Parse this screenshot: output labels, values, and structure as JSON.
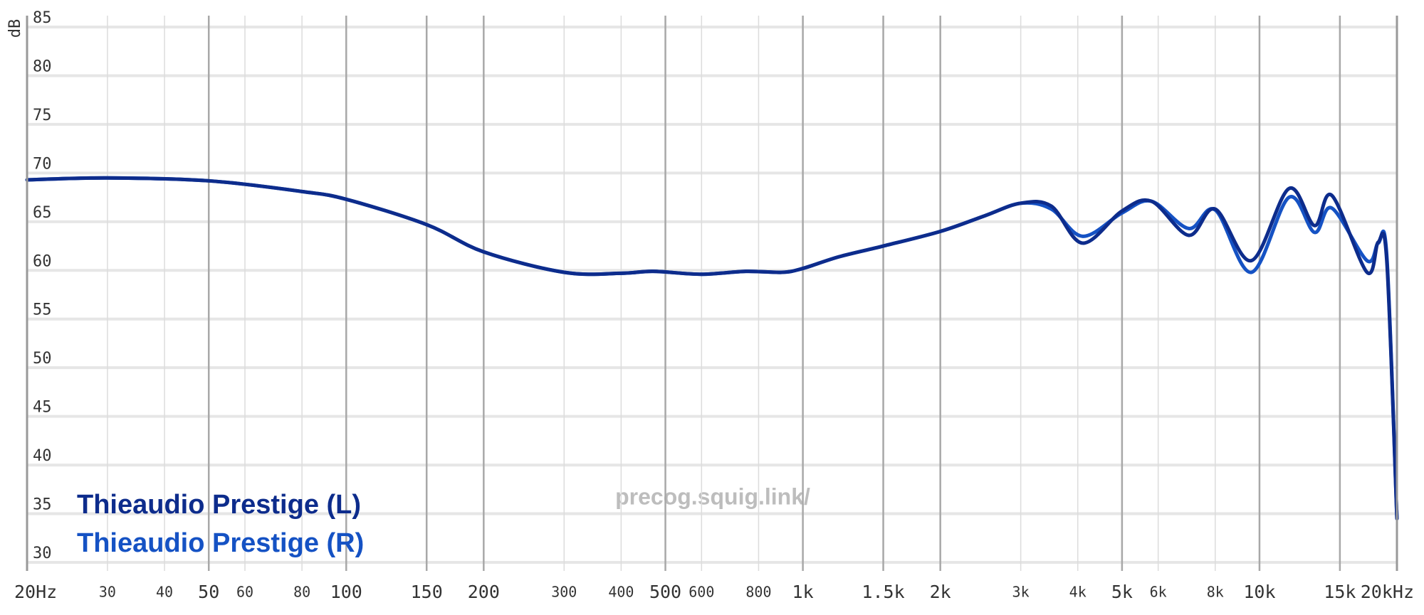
{
  "chart_data": {
    "type": "line",
    "ylabel": "dB",
    "watermark": "precog.squig.link/",
    "xscale": "log",
    "grid": true,
    "legend": "lower left",
    "x": [
      20,
      30,
      50,
      80,
      100,
      150,
      200,
      300,
      400,
      470,
      600,
      750,
      900,
      1000,
      1200,
      1500,
      2000,
      2500,
      3000,
      3500,
      4100,
      5000,
      5800,
      7000,
      8000,
      9600,
      11600,
      13200,
      14400,
      17200,
      18200,
      19000,
      20000
    ],
    "series": [
      {
        "name": "Thieaudio Prestige (L)",
        "color": "#0d2c8c",
        "values": [
          69.3,
          69.5,
          69.2,
          68.1,
          67.3,
          64.7,
          61.9,
          59.8,
          59.7,
          59.9,
          59.6,
          59.9,
          59.8,
          60.2,
          61.4,
          62.5,
          64.0,
          65.6,
          66.9,
          66.6,
          62.8,
          66.1,
          67.1,
          63.6,
          66.3,
          61.0,
          68.4,
          64.6,
          67.7,
          59.8,
          62.9,
          61.0,
          34.5
        ]
      },
      {
        "name": "Thieaudio Prestige (R)",
        "color": "#1552c4",
        "values": [
          69.3,
          69.5,
          69.2,
          68.1,
          67.3,
          64.7,
          61.9,
          59.8,
          59.7,
          59.9,
          59.6,
          59.9,
          59.8,
          60.2,
          61.4,
          62.5,
          64.0,
          65.6,
          66.9,
          66.3,
          63.5,
          65.9,
          67.1,
          64.3,
          66.2,
          59.8,
          67.5,
          63.9,
          66.4,
          61.0,
          62.8,
          61.5,
          34.5
        ]
      }
    ],
    "xlim": [
      20,
      20000
    ],
    "xticks": [
      {
        "value": 20,
        "label": "20Hz"
      },
      30,
      40,
      50,
      60,
      80,
      100,
      150,
      200,
      300,
      400,
      500,
      600,
      800,
      {
        "value": 1000,
        "label": "1k"
      },
      {
        "value": 1500,
        "label": "1.5k"
      },
      {
        "value": 2000,
        "label": "2k"
      },
      {
        "value": 3000,
        "label": "3k"
      },
      {
        "value": 4000,
        "label": "4k"
      },
      {
        "value": 5000,
        "label": "5k"
      },
      {
        "value": 6000,
        "label": "6k"
      },
      {
        "value": 8000,
        "label": "8k"
      },
      {
        "value": 10000,
        "label": "10k"
      },
      {
        "value": 15000,
        "label": "15k"
      },
      {
        "value": 20000,
        "label": "20kHz"
      }
    ],
    "ylim": [
      30,
      85
    ],
    "yticks": [
      30,
      35,
      40,
      45,
      50,
      55,
      60,
      65,
      70,
      75,
      80,
      85
    ]
  }
}
